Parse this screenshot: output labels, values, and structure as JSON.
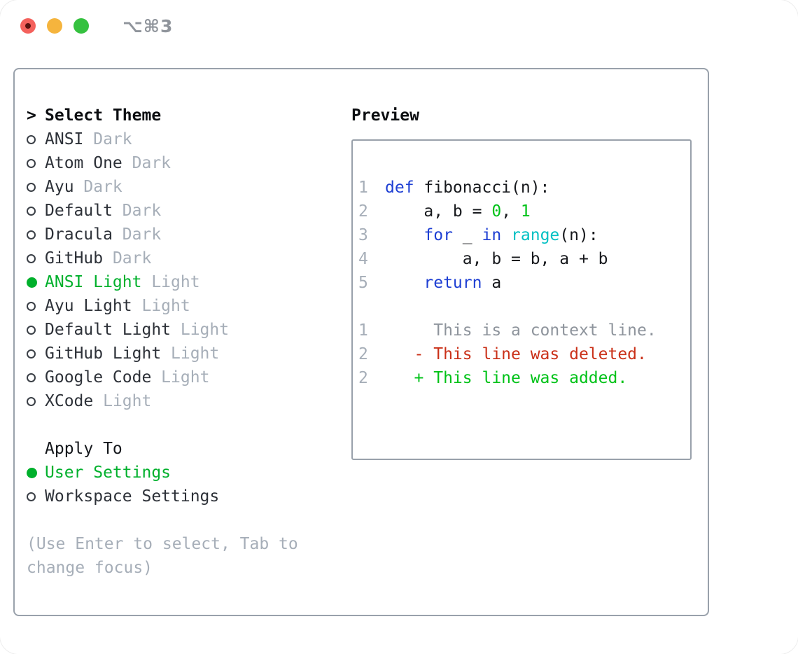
{
  "titlebar": {
    "shortcut": "⌥⌘3"
  },
  "theme_selector": {
    "prompt": ">",
    "title": "Select Theme",
    "items": [
      {
        "name": "ANSI",
        "variant": "Dark",
        "selected": false
      },
      {
        "name": "Atom One",
        "variant": "Dark",
        "selected": false
      },
      {
        "name": "Ayu",
        "variant": "Dark",
        "selected": false
      },
      {
        "name": "Default",
        "variant": "Dark",
        "selected": false
      },
      {
        "name": "Dracula",
        "variant": "Dark",
        "selected": false
      },
      {
        "name": "GitHub",
        "variant": "Dark",
        "selected": false
      },
      {
        "name": "ANSI Light",
        "variant": "Light",
        "selected": true
      },
      {
        "name": "Ayu Light",
        "variant": "Light",
        "selected": false
      },
      {
        "name": "Default Light",
        "variant": "Light",
        "selected": false
      },
      {
        "name": "GitHub Light",
        "variant": "Light",
        "selected": false
      },
      {
        "name": "Google Code",
        "variant": "Light",
        "selected": false
      },
      {
        "name": "XCode",
        "variant": "Light",
        "selected": false
      }
    ]
  },
  "apply_to": {
    "title": "Apply To",
    "options": [
      {
        "label": "User Settings",
        "selected": true
      },
      {
        "label": "Workspace Settings",
        "selected": false
      }
    ]
  },
  "help_lines": [
    "(Use Enter to select, Tab to",
    "change focus)"
  ],
  "preview": {
    "title": "Preview",
    "code_lines": [
      {
        "num": "1",
        "tokens": [
          {
            "t": "def",
            "c": "blue"
          },
          {
            "t": " fibonacci(n):",
            "c": "dark"
          }
        ]
      },
      {
        "num": "2",
        "tokens": [
          {
            "t": "    a, b = ",
            "c": "dark"
          },
          {
            "t": "0",
            "c": "green"
          },
          {
            "t": ", ",
            "c": "dark"
          },
          {
            "t": "1",
            "c": "green"
          }
        ]
      },
      {
        "num": "3",
        "tokens": [
          {
            "t": "    ",
            "c": "dark"
          },
          {
            "t": "for",
            "c": "blue"
          },
          {
            "t": " _ ",
            "c": "dark"
          },
          {
            "t": "in",
            "c": "blue"
          },
          {
            "t": " ",
            "c": "dark"
          },
          {
            "t": "range",
            "c": "cyan"
          },
          {
            "t": "(n):",
            "c": "dark"
          }
        ]
      },
      {
        "num": "4",
        "tokens": [
          {
            "t": "        a, b = b, a + b",
            "c": "dark"
          }
        ]
      },
      {
        "num": "5",
        "tokens": [
          {
            "t": "    ",
            "c": "dark"
          },
          {
            "t": "return",
            "c": "blue"
          },
          {
            "t": " a",
            "c": "dark"
          }
        ]
      }
    ],
    "diff_lines": [
      {
        "num": "1",
        "tokens": [
          {
            "t": "     This is a context line.",
            "c": "context"
          }
        ]
      },
      {
        "num": "2",
        "tokens": [
          {
            "t": "   ",
            "c": "dark"
          },
          {
            "t": "- This line was deleted.",
            "c": "red"
          }
        ]
      },
      {
        "num": "2",
        "tokens": [
          {
            "t": "   ",
            "c": "dark"
          },
          {
            "t": "+ This line was added.",
            "c": "green"
          }
        ]
      }
    ]
  },
  "colors": {
    "accent_green": "#00b02c",
    "keyword_blue": "#1e3fd3",
    "builtin_cyan": "#00c0c3",
    "number_green": "#00c218",
    "deleted_red": "#ca3119",
    "muted_gray": "#a6aeb8",
    "border_gray": "#99a1ab",
    "traffic_red": "#f4615c",
    "traffic_yellow": "#f5b43d",
    "traffic_green": "#35c13f"
  }
}
